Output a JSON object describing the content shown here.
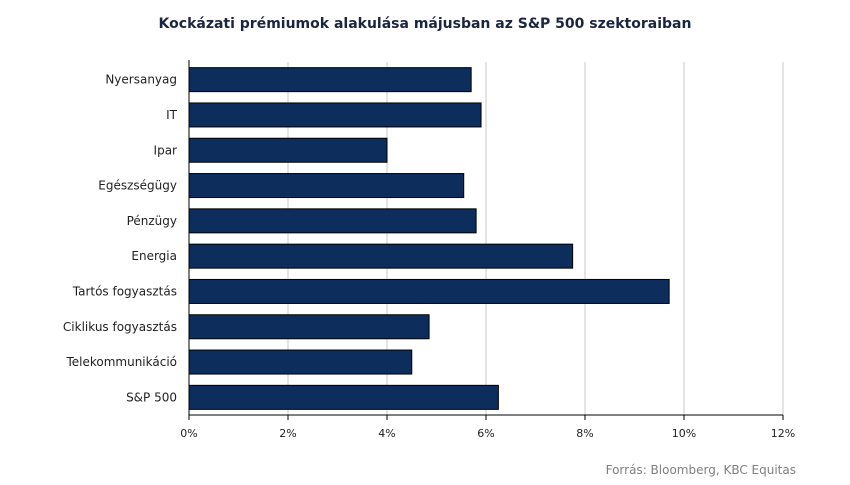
{
  "chart_data": {
    "type": "bar",
    "orientation": "horizontal",
    "title": "Kockázati prémiumok alakulása májusban az S&P 500 szektoraiban",
    "categories": [
      "Nyersanyag",
      "IT",
      "Ipar",
      "Egészségügy",
      "Pénzügy",
      "Energia",
      "Tartós fogyasztás",
      "Ciklikus fogyasztás",
      "Telekommunikáció",
      "S&P 500"
    ],
    "values": [
      5.7,
      5.9,
      4.0,
      5.55,
      5.8,
      7.75,
      9.7,
      4.85,
      4.5,
      6.25
    ],
    "xlim": [
      0,
      12
    ],
    "x_ticks": [
      0,
      2,
      4,
      6,
      8,
      10,
      12
    ],
    "x_tick_labels": [
      "0%",
      "2%",
      "4%",
      "6%",
      "8%",
      "10%",
      "12%"
    ],
    "grid": true,
    "bar_color": "#0d2d5c"
  },
  "source": "Forrás: Bloomberg, KBC Equitas"
}
